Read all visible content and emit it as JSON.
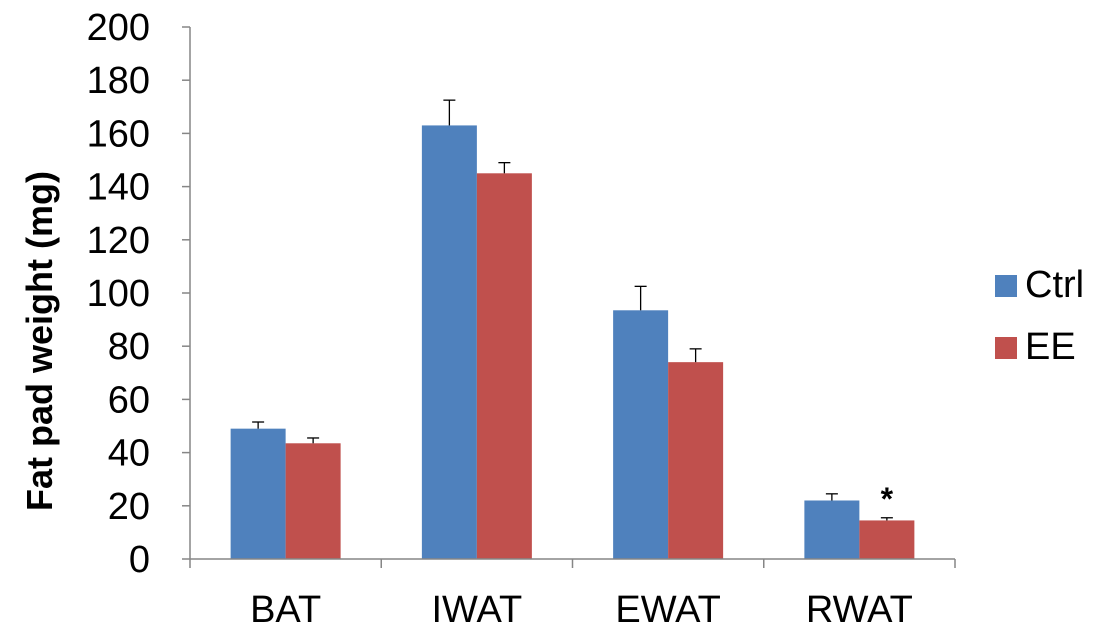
{
  "chart_data": {
    "type": "bar",
    "title": "",
    "xlabel": "",
    "ylabel": "Fat pad weight (mg)",
    "ylim": [
      0,
      200
    ],
    "yticks": [
      0,
      20,
      40,
      60,
      80,
      100,
      120,
      140,
      160,
      180,
      200
    ],
    "categories": [
      "BAT",
      "IWAT",
      "EWAT",
      "RWAT"
    ],
    "series": [
      {
        "name": "Ctrl",
        "color": "#4F81BD",
        "values": [
          49,
          163,
          93.5,
          22
        ],
        "errors": [
          2.5,
          9.5,
          9,
          2.5
        ]
      },
      {
        "name": "EE",
        "color": "#C0504D",
        "values": [
          43.5,
          145,
          74,
          14.5
        ],
        "errors": [
          2,
          4,
          5,
          1
        ]
      }
    ],
    "annotations": [
      {
        "text": "*",
        "category": "RWAT",
        "series": "EE"
      }
    ],
    "legend": {
      "position": "right"
    },
    "grid": false
  }
}
